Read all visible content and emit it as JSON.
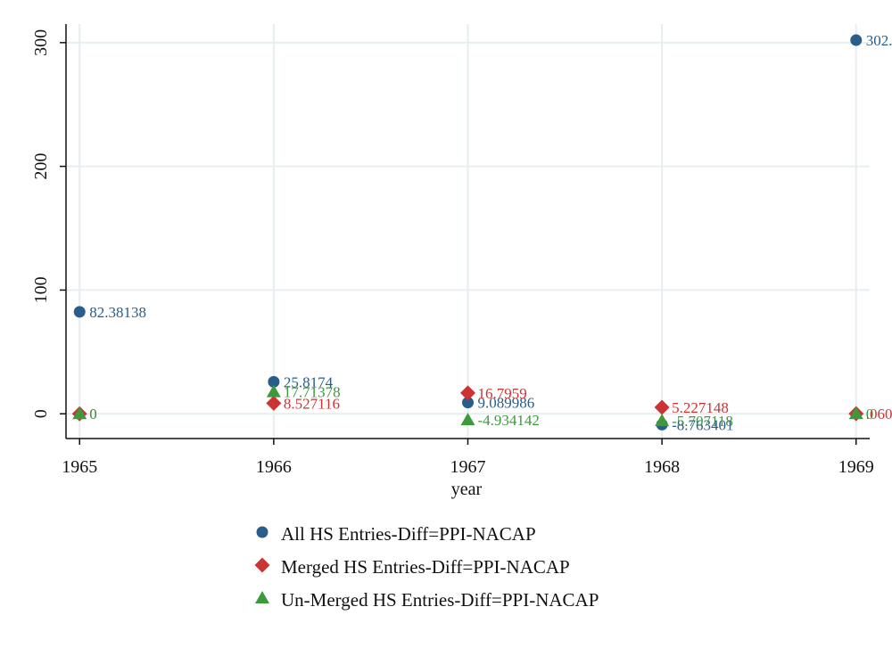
{
  "chart_data": {
    "type": "scatter",
    "title": "",
    "xlabel": "year",
    "ylabel": "",
    "x": [
      1965,
      1966,
      1967,
      1968,
      1969
    ],
    "x_ticks": [
      "1965",
      "1966",
      "1967",
      "1968",
      "1969"
    ],
    "y_ticks": [
      "0",
      "100",
      "200",
      "300"
    ],
    "xlim": [
      1964.93,
      1969.07
    ],
    "ylim": [
      -20,
      315
    ],
    "grid": true,
    "legend_position": "bottom",
    "series": [
      {
        "name": "All HS Entries-Diff=PPI-NACAP",
        "marker": "circle",
        "color": "#2b5d8a",
        "values": [
          82.38138,
          25.8174,
          9.089986,
          -8.763401,
          302.0
        ],
        "labels": [
          "82.38138",
          "25.8174",
          "9.089986",
          "-8.763401",
          "302."
        ]
      },
      {
        "name": "Merged HS Entries-Diff=PPI-NACAP",
        "marker": "diamond",
        "color": "#cc3333",
        "values": [
          0,
          8.527116,
          16.7959,
          5.227148,
          0.06
        ],
        "labels": [
          "0",
          "8.527116",
          "16.7959",
          "5.227148",
          ".060"
        ]
      },
      {
        "name": "Un-Merged HS Entries-Diff=PPI-NACAP",
        "marker": "triangle",
        "color": "#3c9a3c",
        "values": [
          0,
          17.71378,
          -4.934142,
          -5.707118,
          0
        ],
        "labels": [
          "0",
          "17.71378",
          "-4.934142",
          "-5.707118",
          "0"
        ]
      }
    ]
  }
}
